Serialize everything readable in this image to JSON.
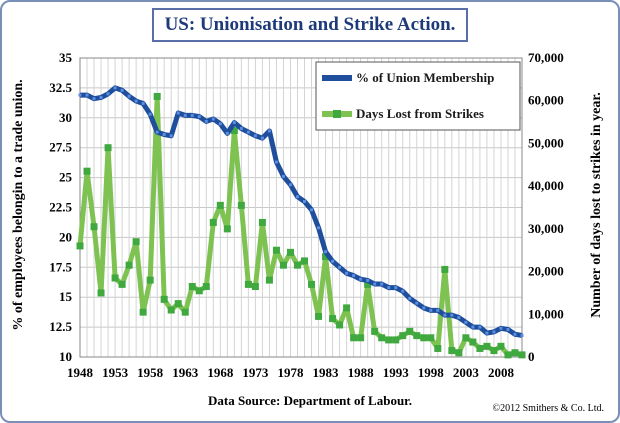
{
  "chart_data": {
    "type": "line",
    "title": "US: Unionisation and Strike Action.",
    "ylabel_left": "% of employees belongin to a trade union.",
    "ylabel_right": "Number of days lost to strikes in year.",
    "source": "Data Source: Department of Labour.",
    "copyright": "©2012 Smithers & Co. Ltd.",
    "x_ticks": [
      "1948",
      "1953",
      "1958",
      "1963",
      "1968",
      "1973",
      "1978",
      "1983",
      "1988",
      "1993",
      "1998",
      "2003",
      "2008"
    ],
    "y_left_ticks": [
      "10",
      "12.5",
      "15",
      "17.5",
      "20",
      "22.5",
      "25",
      "27.5",
      "30",
      "32.5",
      "35"
    ],
    "y_right_ticks": [
      "0",
      "10,000",
      "20,000",
      "30,000",
      "40,000",
      "50,000",
      "60,000",
      "70,000"
    ],
    "xlim": [
      1948,
      2011
    ],
    "ylim_left": [
      10,
      35
    ],
    "ylim_right": [
      0,
      70000
    ],
    "grid": true,
    "legend_position": "top-right",
    "years": [
      1948,
      1949,
      1950,
      1951,
      1952,
      1953,
      1954,
      1955,
      1956,
      1957,
      1958,
      1959,
      1960,
      1961,
      1962,
      1963,
      1964,
      1965,
      1966,
      1967,
      1968,
      1969,
      1970,
      1971,
      1972,
      1973,
      1974,
      1975,
      1976,
      1977,
      1978,
      1979,
      1980,
      1981,
      1982,
      1983,
      1984,
      1985,
      1986,
      1987,
      1988,
      1989,
      1990,
      1991,
      1992,
      1993,
      1994,
      1995,
      1996,
      1997,
      1998,
      1999,
      2000,
      2001,
      2002,
      2003,
      2004,
      2005,
      2006,
      2007,
      2008,
      2009,
      2010,
      2011
    ],
    "series": [
      {
        "name": "% of Union Membership",
        "axis": "left",
        "color": "#1f4e9c",
        "values": [
          31.9,
          31.9,
          31.6,
          31.7,
          32.0,
          32.5,
          32.3,
          31.8,
          31.4,
          31.2,
          30.3,
          28.8,
          28.6,
          28.5,
          30.4,
          30.2,
          30.2,
          30.1,
          29.7,
          29.9,
          29.5,
          28.7,
          29.6,
          29.1,
          28.8,
          28.5,
          28.3,
          28.9,
          26.3,
          25.1,
          24.4,
          23.4,
          23.0,
          22.3,
          20.8,
          18.8,
          18.0,
          17.5,
          17.0,
          16.8,
          16.5,
          16.4,
          16.1,
          16.1,
          15.8,
          15.8,
          15.5,
          14.9,
          14.5,
          14.1,
          13.9,
          13.9,
          13.5,
          13.5,
          13.3,
          12.9,
          12.5,
          12.5,
          12.0,
          12.1,
          12.4,
          12.3,
          11.9,
          11.8
        ]
      },
      {
        "name": "Days Lost from Strikes",
        "axis": "right",
        "color": "#7ec352",
        "values": [
          26000,
          43500,
          30500,
          15000,
          49000,
          18500,
          17000,
          21500,
          27000,
          10500,
          18000,
          61000,
          13500,
          11000,
          12500,
          10500,
          16500,
          15500,
          16500,
          31500,
          35500,
          30000,
          53000,
          35500,
          17000,
          16500,
          31500,
          18000,
          25000,
          21500,
          24500,
          21500,
          22500,
          17000,
          9500,
          23500,
          9000,
          7500,
          11500,
          4500,
          4500,
          17000,
          6000,
          4500,
          4000,
          4000,
          5000,
          6000,
          5000,
          4500,
          4500,
          2000,
          20500,
          1500,
          1000,
          4500,
          3500,
          2000,
          2500,
          1500,
          2500,
          500,
          1000,
          500
        ]
      }
    ],
    "legend": [
      "% of Union Membership",
      "Days Lost from Strikes"
    ]
  }
}
